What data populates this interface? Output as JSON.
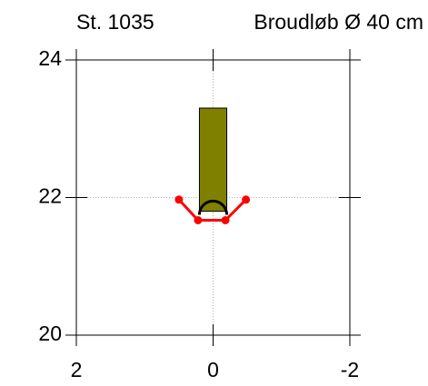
{
  "chart_data": {
    "type": "cross-section",
    "station": "St. 1035",
    "title": "Broudløb Ø 40 cm",
    "xlim": [
      2,
      -2
    ],
    "ylim": [
      20,
      24
    ],
    "xticks": [
      2,
      0,
      -2
    ],
    "yticks": [
      20,
      22,
      24
    ],
    "grid": true,
    "bar": {
      "color": "#808000",
      "x": [
        0.2,
        -0.2
      ],
      "y": [
        21.8,
        23.3
      ]
    },
    "pipe": {
      "color": "#000000",
      "x": 0,
      "y": 21.75,
      "diameter": 0.4
    },
    "line": {
      "color": "#ff0000",
      "x": [
        0.5,
        0.22,
        -0.18,
        -0.48
      ],
      "y": [
        21.97,
        21.67,
        21.67,
        21.97
      ]
    }
  }
}
